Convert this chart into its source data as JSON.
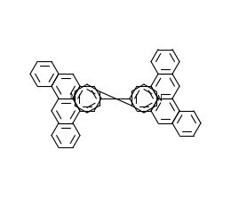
{
  "bg_color": "#ffffff",
  "line_color": "#000000",
  "lw": 0.8,
  "fig_width": 2.6,
  "fig_height": 2.22,
  "dpi": 100,
  "xlim": [
    0,
    260
  ],
  "ylim": [
    0,
    222
  ]
}
